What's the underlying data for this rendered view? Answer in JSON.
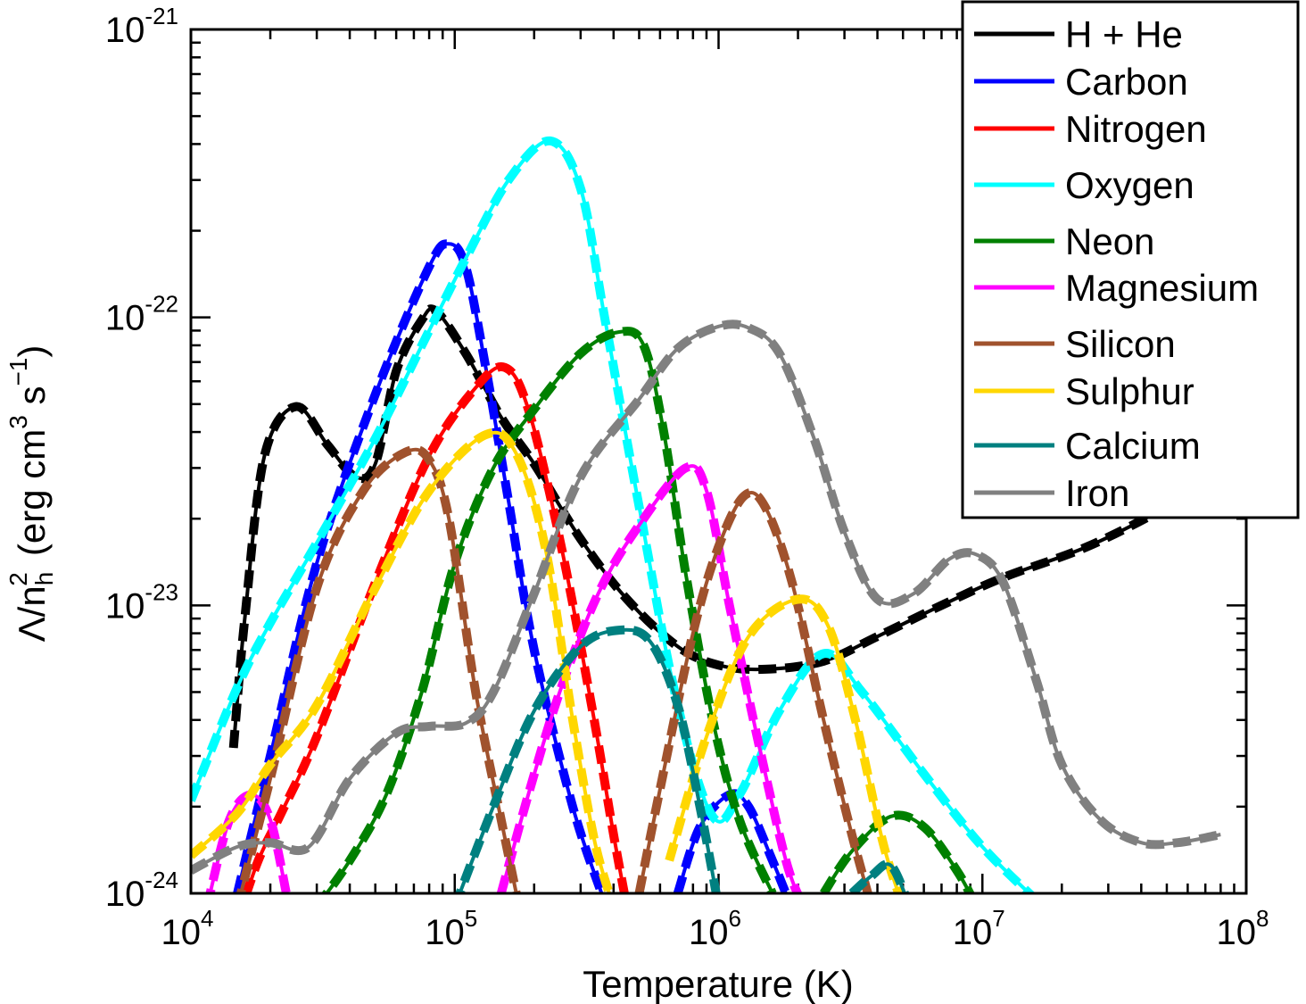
{
  "chart_data": {
    "type": "line",
    "xlabel": "Temperature (K)",
    "ylabel": {
      "base": "Λ/n",
      "sub": "h",
      "sup": "2",
      "units_prefix": "(erg cm",
      "units_sup1": "3",
      "units_mid": " s",
      "units_sup2": "−1",
      "units_suffix": ")"
    },
    "x_scale": "log",
    "y_scale": "log",
    "xlim": [
      10000,
      100000000
    ],
    "ylim": [
      1e-24,
      1e-21
    ],
    "x_ticks": [
      {
        "value": 10000,
        "base": "10",
        "exp": "4"
      },
      {
        "value": 100000,
        "base": "10",
        "exp": "5"
      },
      {
        "value": 1000000,
        "base": "10",
        "exp": "6"
      },
      {
        "value": 10000000,
        "base": "10",
        "exp": "7"
      },
      {
        "value": 100000000,
        "base": "10",
        "exp": "8"
      }
    ],
    "y_ticks": [
      {
        "value": 1e-24,
        "base": "10",
        "exp": "-24"
      },
      {
        "value": 1e-23,
        "base": "10",
        "exp": "-23"
      },
      {
        "value": 1e-22,
        "base": "10",
        "exp": "-22"
      },
      {
        "value": 1e-21,
        "base": "10",
        "exp": "-21"
      }
    ],
    "legend_position": "top-right",
    "grid": false,
    "series": [
      {
        "name": "H + He",
        "color": "#000000",
        "points": [
          [
            14500,
            3.2e-24
          ],
          [
            16000,
            9e-24
          ],
          [
            19000,
            3.3e-23
          ],
          [
            25000,
            4.9e-23
          ],
          [
            33000,
            3.6e-23
          ],
          [
            42000,
            2.8e-23
          ],
          [
            50000,
            3.1e-23
          ],
          [
            60000,
            6.5e-23
          ],
          [
            75000,
            9.8e-23
          ],
          [
            85000,
            1.05e-22
          ],
          [
            110000,
            7.5e-23
          ],
          [
            150000,
            4.5e-23
          ],
          [
            200000,
            3.1e-23
          ],
          [
            300000,
            1.7e-23
          ],
          [
            450000,
            1.05e-23
          ],
          [
            700000,
            7.2e-24
          ],
          [
            1000000,
            6.2e-24
          ],
          [
            1500000,
            6e-24
          ],
          [
            2500000,
            6.4e-24
          ],
          [
            4000000,
            7.8e-24
          ],
          [
            7000000,
            1e-23
          ],
          [
            12000000,
            1.25e-23
          ],
          [
            25000000,
            1.6e-23
          ],
          [
            50000000,
            2.2e-23
          ],
          [
            80000000,
            2.9e-23
          ]
        ]
      },
      {
        "name": "Carbon",
        "color": "#0000ff",
        "points": [
          [
            15000,
            1e-24
          ],
          [
            20000,
            3e-24
          ],
          [
            30000,
            1.4e-23
          ],
          [
            50000,
            5.4e-23
          ],
          [
            80000,
            1.5e-22
          ],
          [
            95000,
            1.8e-22
          ],
          [
            110000,
            1.5e-22
          ],
          [
            130000,
            7e-23
          ],
          [
            160000,
            2.3e-23
          ],
          [
            200000,
            7e-24
          ],
          [
            280000,
            2e-24
          ],
          [
            360000,
            1e-24
          ]
        ],
        "extra": [
          [
            700000,
            1e-24
          ],
          [
            850000,
            1.7e-24
          ],
          [
            1100000,
            2.2e-24
          ],
          [
            1300000,
            2e-24
          ],
          [
            1600000,
            1.3e-24
          ],
          [
            1800000,
            1e-24
          ]
        ]
      },
      {
        "name": "Nitrogen",
        "color": "#ff0000",
        "points": [
          [
            15000,
            8e-25
          ],
          [
            18000,
            1.3e-24
          ],
          [
            22000,
            1.9e-24
          ],
          [
            30000,
            3.5e-24
          ],
          [
            50000,
            1.2e-23
          ],
          [
            80000,
            3.3e-23
          ],
          [
            120000,
            5.7e-23
          ],
          [
            155000,
            6.7e-23
          ],
          [
            190000,
            4.8e-23
          ],
          [
            250000,
            1.7e-23
          ],
          [
            330000,
            4.5e-24
          ],
          [
            400000,
            1.6e-24
          ],
          [
            460000,
            8e-25
          ]
        ]
      },
      {
        "name": "Oxygen",
        "color": "#00ffff",
        "points": [
          [
            10000,
            2.1e-24
          ],
          [
            15000,
            5.2e-24
          ],
          [
            20000,
            8.7e-24
          ],
          [
            30000,
            1.65e-23
          ],
          [
            50000,
            3.8e-23
          ],
          [
            80000,
            9e-23
          ],
          [
            110000,
            1.6e-22
          ],
          [
            160000,
            3e-22
          ],
          [
            230000,
            4.1e-22
          ],
          [
            300000,
            2.8e-22
          ],
          [
            370000,
            1e-22
          ],
          [
            500000,
            2.2e-23
          ],
          [
            700000,
            4.5e-24
          ],
          [
            950000,
            1.85e-24
          ],
          [
            1200000,
            2.2e-24
          ],
          [
            1700000,
            4.3e-24
          ],
          [
            2500000,
            6.8e-24
          ],
          [
            3500000,
            5e-24
          ],
          [
            6000000,
            2.6e-24
          ],
          [
            10000000,
            1.45e-24
          ],
          [
            17000000,
            9e-25
          ]
        ]
      },
      {
        "name": "Neon",
        "color": "#008000",
        "points": [
          [
            30000,
            9e-25
          ],
          [
            40000,
            1.3e-24
          ],
          [
            55000,
            2.2e-24
          ],
          [
            75000,
            5e-24
          ],
          [
            100000,
            1.4e-23
          ],
          [
            140000,
            3e-23
          ],
          [
            200000,
            4.8e-23
          ],
          [
            300000,
            7.5e-23
          ],
          [
            420000,
            8.9e-23
          ],
          [
            520000,
            8e-23
          ],
          [
            620000,
            4e-23
          ],
          [
            750000,
            1.3e-23
          ],
          [
            950000,
            4e-24
          ],
          [
            1200000,
            1.8e-24
          ],
          [
            1600000,
            1e-24
          ]
        ],
        "extra": [
          [
            2500000,
            1e-24
          ],
          [
            3200000,
            1.4e-24
          ],
          [
            4500000,
            1.85e-24
          ],
          [
            6000000,
            1.7e-24
          ],
          [
            8000000,
            1.2e-24
          ],
          [
            9500000,
            9e-25
          ]
        ]
      },
      {
        "name": "Magnesium",
        "color": "#ff00ff",
        "points": [
          [
            11500,
            9e-25
          ],
          [
            14000,
            1.8e-24
          ],
          [
            17000,
            2.2e-24
          ],
          [
            20000,
            1.8e-24
          ],
          [
            23000,
            1e-24
          ]
        ],
        "extra": [
          [
            150000,
            1e-24
          ],
          [
            190000,
            2.2e-24
          ],
          [
            250000,
            5e-24
          ],
          [
            350000,
            1.1e-23
          ],
          [
            500000,
            1.9e-23
          ],
          [
            750000,
            3e-23
          ],
          [
            900000,
            2.5e-23
          ],
          [
            1100000,
            1e-23
          ],
          [
            1400000,
            3.5e-24
          ],
          [
            1800000,
            1.3e-24
          ],
          [
            2100000,
            9e-25
          ]
        ]
      },
      {
        "name": "Silicon",
        "color": "#a0522d",
        "points": [
          [
            15000,
            9e-25
          ],
          [
            20000,
            2.5e-24
          ],
          [
            30000,
            1.15e-23
          ],
          [
            45000,
            2.5e-23
          ],
          [
            65000,
            3.4e-23
          ],
          [
            80000,
            3.2e-23
          ],
          [
            95000,
            2e-23
          ],
          [
            120000,
            5e-24
          ],
          [
            150000,
            1.8e-24
          ],
          [
            180000,
            8e-25
          ]
        ],
        "extra": [
          [
            500000,
            1e-24
          ],
          [
            600000,
            2.3e-24
          ],
          [
            800000,
            8e-24
          ],
          [
            1000000,
            1.6e-23
          ],
          [
            1250000,
            2.4e-23
          ],
          [
            1500000,
            2.2e-23
          ],
          [
            1900000,
            1.2e-23
          ],
          [
            2500000,
            4e-24
          ],
          [
            3200000,
            1.6e-24
          ],
          [
            3800000,
            9e-25
          ]
        ]
      },
      {
        "name": "Sulphur",
        "color": "#ffd700",
        "points": [
          [
            10000,
            1.35e-24
          ],
          [
            15000,
            1.9e-24
          ],
          [
            20000,
            2.8e-24
          ],
          [
            30000,
            4.5e-24
          ],
          [
            50000,
            1.15e-23
          ],
          [
            80000,
            2.5e-23
          ],
          [
            130000,
            3.9e-23
          ],
          [
            170000,
            3.4e-23
          ],
          [
            220000,
            1.6e-23
          ],
          [
            280000,
            4e-24
          ],
          [
            340000,
            1.5e-24
          ],
          [
            400000,
            9e-25
          ]
        ],
        "extra": [
          [
            650000,
            1.3e-24
          ],
          [
            900000,
            3.5e-24
          ],
          [
            1300000,
            7.8e-24
          ],
          [
            2000000,
            1.05e-23
          ],
          [
            2600000,
            8.5e-24
          ],
          [
            3300000,
            4e-24
          ],
          [
            4200000,
            1.5e-24
          ],
          [
            5000000,
            9e-25
          ]
        ]
      },
      {
        "name": "Calcium",
        "color": "#008080",
        "points": [
          [
            100000,
            9e-25
          ],
          [
            140000,
            2e-24
          ],
          [
            200000,
            4.3e-24
          ],
          [
            300000,
            7.2e-24
          ],
          [
            420000,
            8.2e-24
          ],
          [
            550000,
            7.5e-24
          ],
          [
            700000,
            4.5e-24
          ],
          [
            850000,
            2e-24
          ],
          [
            1000000,
            9e-25
          ]
        ],
        "extra": [
          [
            3200000,
            1e-24
          ],
          [
            3800000,
            1.15e-24
          ],
          [
            4500000,
            1.25e-24
          ],
          [
            5300000,
            9e-25
          ]
        ]
      },
      {
        "name": "Iron",
        "color": "#808080",
        "points": [
          [
            10000,
            1.2e-24
          ],
          [
            15000,
            1.45e-24
          ],
          [
            20000,
            1.5e-24
          ],
          [
            28000,
            1.45e-24
          ],
          [
            40000,
            2.5e-24
          ],
          [
            60000,
            3.6e-24
          ],
          [
            80000,
            3.8e-24
          ],
          [
            110000,
            3.9e-24
          ],
          [
            140000,
            5e-24
          ],
          [
            200000,
            1.1e-23
          ],
          [
            300000,
            2.8e-23
          ],
          [
            500000,
            5.2e-23
          ],
          [
            700000,
            7.8e-23
          ],
          [
            1000000,
            9.3e-23
          ],
          [
            1300000,
            9.2e-23
          ],
          [
            1700000,
            7.5e-23
          ],
          [
            2300000,
            3.8e-23
          ],
          [
            3000000,
            1.8e-23
          ],
          [
            4000000,
            1.05e-23
          ],
          [
            5500000,
            1.1e-23
          ],
          [
            7500000,
            1.45e-23
          ],
          [
            9500000,
            1.5e-23
          ],
          [
            12000000,
            1.2e-23
          ],
          [
            16000000,
            5.5e-24
          ],
          [
            20000000,
            2.8e-24
          ],
          [
            28000000,
            1.8e-24
          ],
          [
            40000000,
            1.5e-24
          ],
          [
            55000000,
            1.5e-24
          ],
          [
            80000000,
            1.6e-24
          ]
        ]
      }
    ]
  }
}
